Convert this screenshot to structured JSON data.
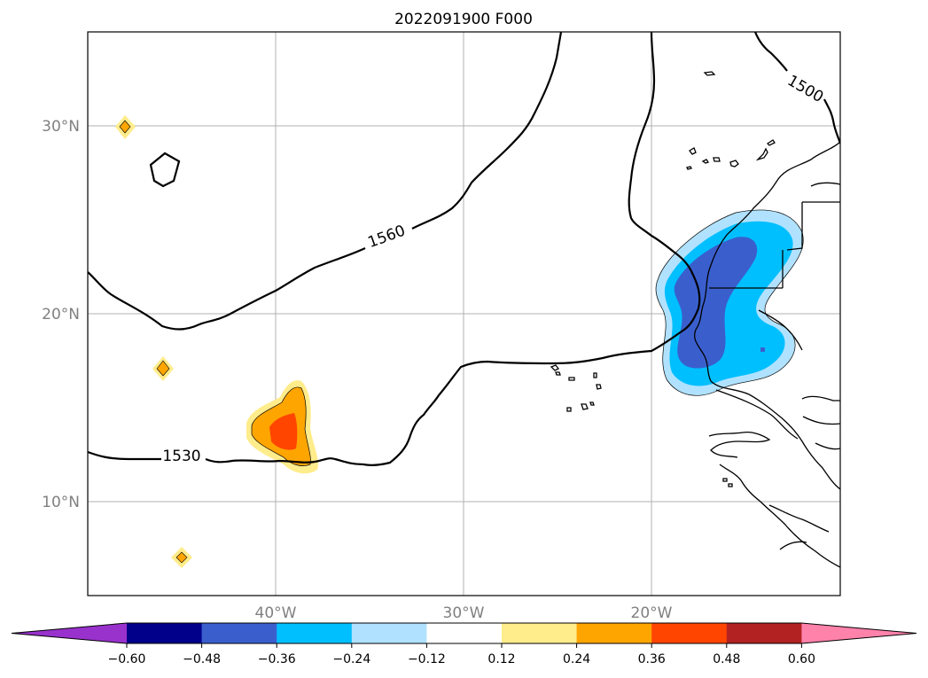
{
  "title": "2022091900 F000",
  "map": {
    "lat_labels": [
      {
        "lat": 30,
        "label": "30°N"
      },
      {
        "lat": 20,
        "label": "20°N"
      },
      {
        "lat": 10,
        "label": "10°N"
      }
    ],
    "lon_labels": [
      {
        "lon": -40,
        "label": "40°W"
      },
      {
        "lon": -30,
        "label": "30°W"
      },
      {
        "lon": -20,
        "label": "20°W"
      }
    ],
    "contour_labels": [
      "1560",
      "1530",
      "1500"
    ]
  },
  "colorbar": {
    "ticks": [
      "−0.60",
      "−0.48",
      "−0.36",
      "−0.24",
      "−0.12",
      "0.12",
      "0.24",
      "0.36",
      "0.48",
      "0.60"
    ],
    "colors": [
      "#9932cc",
      "#00008b",
      "#3a5fcd",
      "#00bfff",
      "#b0e2ff",
      "#ffffff",
      "#ffec8b",
      "#ffa500",
      "#ff4500",
      "#b22222",
      "#ff82ab"
    ]
  },
  "colors": {
    "grid": "#b0b0b0",
    "axis_text": "#808080"
  }
}
